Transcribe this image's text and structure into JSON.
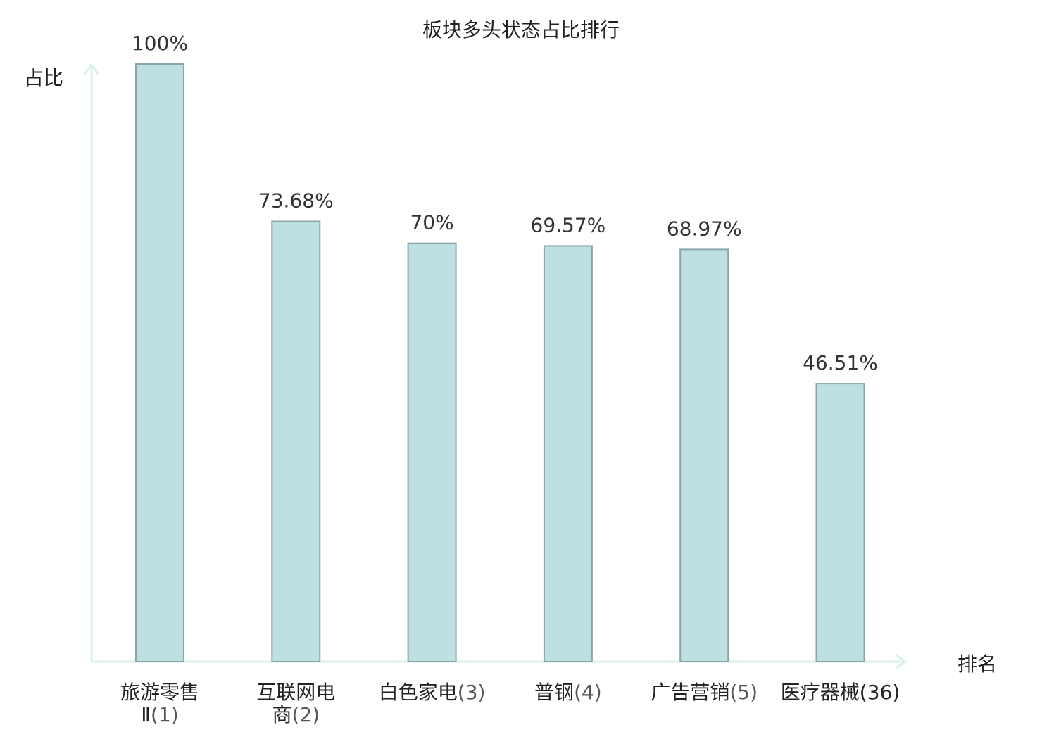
{
  "chart_data": {
    "type": "bar",
    "title": "板块多头状态占比排行",
    "ylabel": "占比",
    "xlabel": "排名",
    "ylim": [
      0,
      100
    ],
    "grid": false,
    "categories": [
      "旅游零售Ⅱ(1)",
      "互联网电商(2)",
      "白色家电(3)",
      "普钢(4)",
      "广告营销(5)",
      "医疗器械(36)"
    ],
    "category_lines": [
      [
        {
          "name": "旅游零售",
          "rank": ""
        },
        {
          "name": "Ⅱ",
          "rank": "(1)"
        }
      ],
      [
        {
          "name": "互联网电",
          "rank": ""
        },
        {
          "name": "商",
          "rank": "(2)"
        }
      ],
      [
        {
          "name": "白色家电",
          "rank": "(3)"
        }
      ],
      [
        {
          "name": "普钢",
          "rank": "(4)"
        }
      ],
      [
        {
          "name": "广告营销",
          "rank": "(5)"
        }
      ],
      [
        {
          "name": "医疗器械",
          "rank": "(36)"
        }
      ]
    ],
    "values": [
      100,
      73.68,
      70,
      69.57,
      68.97,
      46.51
    ],
    "value_labels": [
      "100%",
      "73.68%",
      "70%",
      "69.57%",
      "68.97%",
      "46.51%"
    ],
    "highlight_index": 5,
    "colors": {
      "bar_fill": "#bde0e3",
      "bar_stroke": "#8aa5aa",
      "axis": "#dcf1ee",
      "highlight_text": "#e0201b"
    }
  }
}
